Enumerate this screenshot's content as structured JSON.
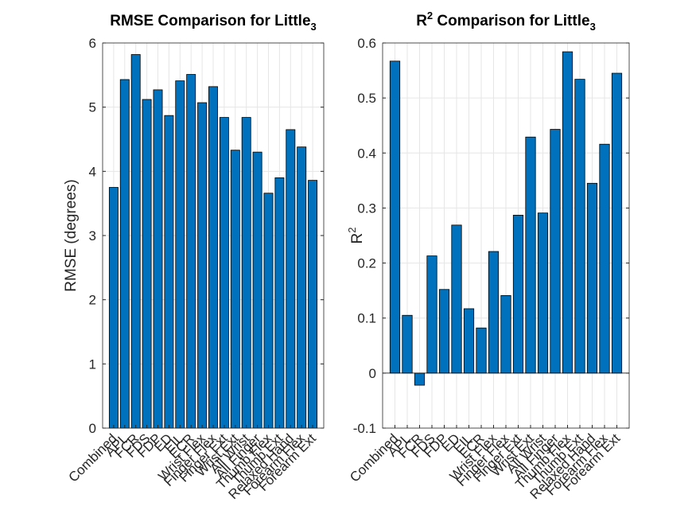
{
  "chart_data": [
    {
      "type": "bar",
      "title": "RMSE Comparison for Little",
      "title_subscript": "3",
      "ylabel": "RMSE (degrees)",
      "categories": [
        "Combined",
        "APL",
        "FCR",
        "FDS",
        "FDP",
        "ED",
        "EIL",
        "ECR",
        "Wrist Flex",
        "Finger Flex",
        "Finger Ext",
        "Wrist Ext",
        "All Wrist",
        "All Finger",
        "Thumb Flex",
        "Thumb Ext",
        "Relaxed Hand",
        "Forearm Flex",
        "Forearm Ext"
      ],
      "values": [
        3.75,
        5.43,
        5.82,
        5.12,
        5.27,
        4.87,
        5.41,
        5.51,
        5.07,
        5.32,
        4.84,
        4.33,
        4.84,
        4.3,
        3.66,
        3.9,
        4.65,
        4.38,
        3.86
      ],
      "color": "#0072bd",
      "ylim": [
        0,
        6
      ],
      "yticks": [
        0,
        1,
        2,
        3,
        4,
        5,
        6
      ],
      "grid": true
    },
    {
      "type": "bar",
      "title_prefix": "R",
      "title_superscript": "2",
      "title": " Comparison for Little",
      "title_subscript": "3",
      "ylabel": "R",
      "ylabel_superscript": "2",
      "categories": [
        "Combined",
        "APL",
        "FCR",
        "FDS",
        "FDP",
        "ED",
        "EIL",
        "ECR",
        "Wrist Flex",
        "Finger Flex",
        "Finger Ext",
        "Wrist Ext",
        "All Wrist",
        "All Finger",
        "Thumb Flex",
        "Thumb Ext",
        "Relaxed Hand",
        "Forearm Flex",
        "Forearm Ext"
      ],
      "values": [
        0.567,
        0.105,
        -0.022,
        0.213,
        0.152,
        0.269,
        0.117,
        0.082,
        0.221,
        0.141,
        0.287,
        0.429,
        0.291,
        0.443,
        0.584,
        0.534,
        0.345,
        0.416,
        0.545
      ],
      "color": "#0072bd",
      "ylim": [
        -0.1,
        0.6
      ],
      "yticks": [
        -0.1,
        0,
        0.1,
        0.2,
        0.3,
        0.4,
        0.5,
        0.6
      ],
      "grid": true
    }
  ]
}
